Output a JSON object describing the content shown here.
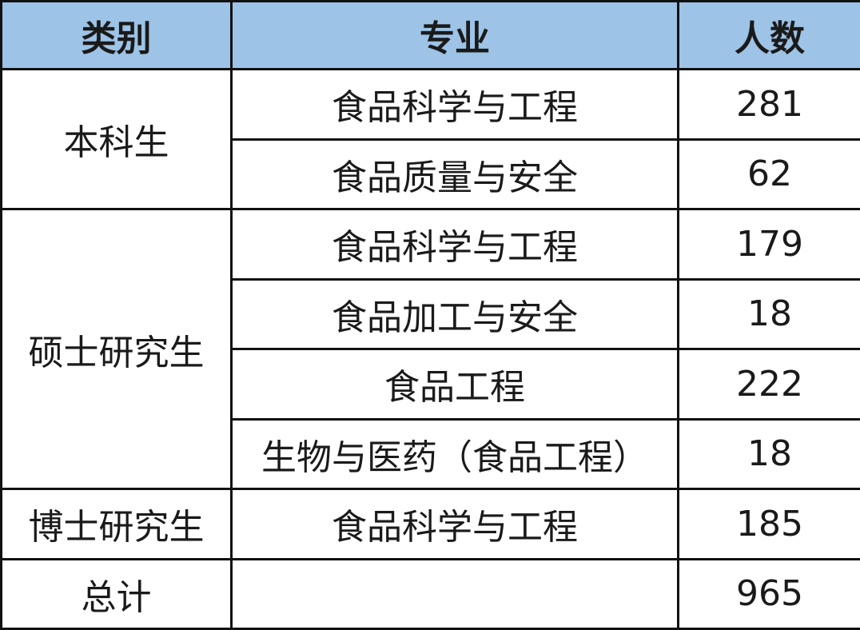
{
  "header": {
    "category": "类别",
    "major": "专业",
    "count": "人数"
  },
  "colors": {
    "header_bg": "#9dc3e6",
    "border": "#111111"
  },
  "groups": [
    {
      "category": "本科生",
      "rows": [
        {
          "major": "食品科学与工程",
          "count": "281"
        },
        {
          "major": "食品质量与安全",
          "count": "62"
        }
      ]
    },
    {
      "category": "硕士研究生",
      "rows": [
        {
          "major": "食品科学与工程",
          "count": "179"
        },
        {
          "major": "食品加工与安全",
          "count": "18"
        },
        {
          "major": "食品工程",
          "count": "222"
        },
        {
          "major": "生物与医药（食品工程）",
          "count": "18"
        }
      ]
    },
    {
      "category": "博士研究生",
      "rows": [
        {
          "major": "食品科学与工程",
          "count": "185"
        }
      ]
    }
  ],
  "total": {
    "label": "总计",
    "major": "",
    "count": "965"
  }
}
